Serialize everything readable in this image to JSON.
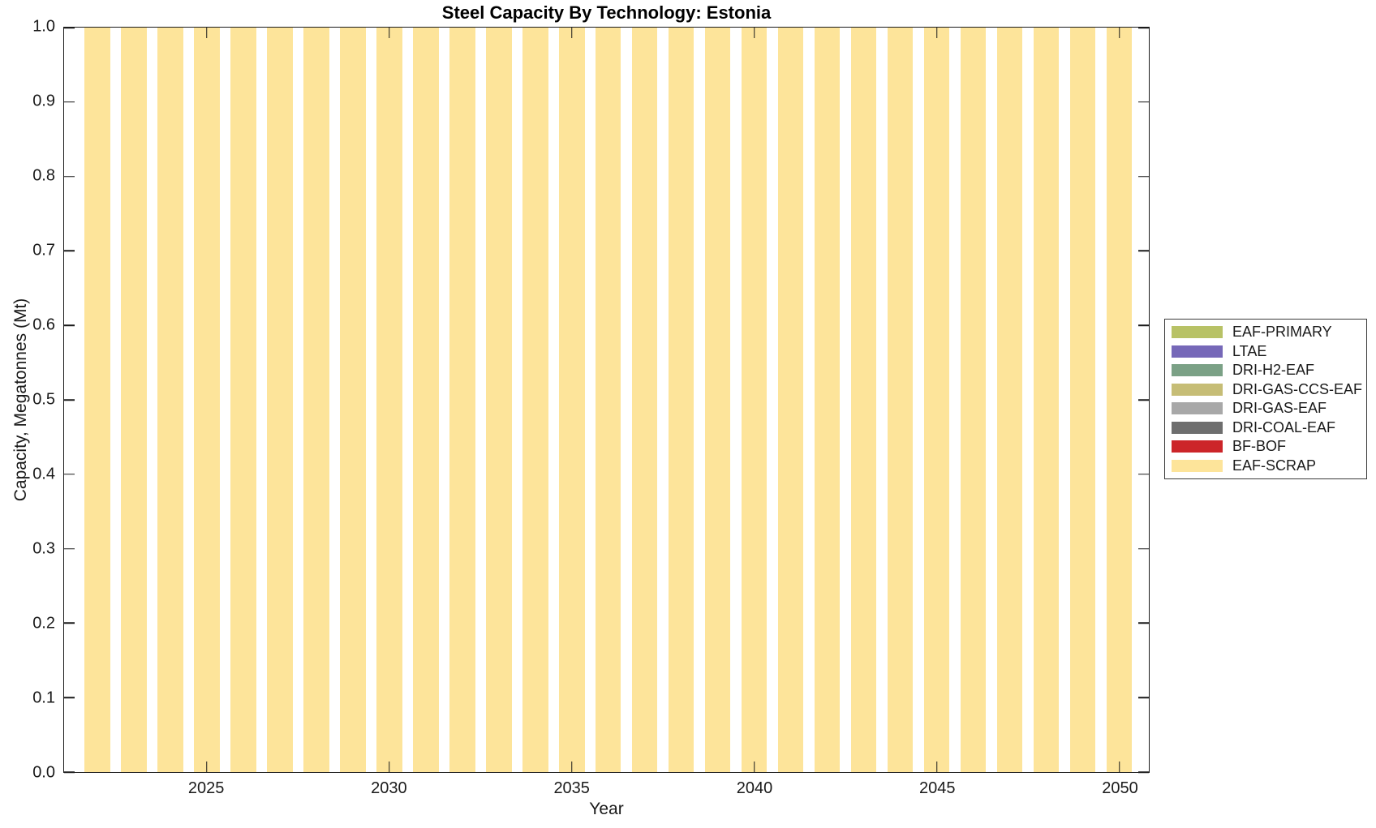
{
  "figure": {
    "title": "Steel Capacity By Technology: Estonia",
    "xlabel": "Year",
    "ylabel": "Capacity, Megatonnes (Mt)"
  },
  "legend": {
    "entries": [
      {
        "label": "EAF-PRIMARY",
        "color": "#b8c266"
      },
      {
        "label": "LTAE",
        "color": "#7668b8"
      },
      {
        "label": "DRI-H2-EAF",
        "color": "#7ba186"
      },
      {
        "label": "DRI-GAS-CCS-EAF",
        "color": "#c6bd76"
      },
      {
        "label": "DRI-GAS-EAF",
        "color": "#a8a8a8"
      },
      {
        "label": "DRI-COAL-EAF",
        "color": "#6e6e6e"
      },
      {
        "label": "BF-BOF",
        "color": "#cc2529"
      },
      {
        "label": "EAF-SCRAP",
        "color": "#fde49a"
      }
    ]
  },
  "chart_data": {
    "type": "bar",
    "stacked": true,
    "title": "Steel Capacity By Technology: Estonia",
    "xlabel": "Year",
    "ylabel": "Capacity, Megatonnes (Mt)",
    "x": [
      2022,
      2023,
      2024,
      2025,
      2026,
      2027,
      2028,
      2029,
      2030,
      2031,
      2032,
      2033,
      2034,
      2035,
      2036,
      2037,
      2038,
      2039,
      2040,
      2041,
      2042,
      2043,
      2044,
      2045,
      2046,
      2047,
      2048,
      2049,
      2050
    ],
    "series": [
      {
        "name": "EAF-PRIMARY",
        "color": "#b8c266",
        "values": [
          0,
          0,
          0,
          0,
          0,
          0,
          0,
          0,
          0,
          0,
          0,
          0,
          0,
          0,
          0,
          0,
          0,
          0,
          0,
          0,
          0,
          0,
          0,
          0,
          0,
          0,
          0,
          0,
          0
        ]
      },
      {
        "name": "LTAE",
        "color": "#7668b8",
        "values": [
          0,
          0,
          0,
          0,
          0,
          0,
          0,
          0,
          0,
          0,
          0,
          0,
          0,
          0,
          0,
          0,
          0,
          0,
          0,
          0,
          0,
          0,
          0,
          0,
          0,
          0,
          0,
          0,
          0
        ]
      },
      {
        "name": "DRI-H2-EAF",
        "color": "#7ba186",
        "values": [
          0,
          0,
          0,
          0,
          0,
          0,
          0,
          0,
          0,
          0,
          0,
          0,
          0,
          0,
          0,
          0,
          0,
          0,
          0,
          0,
          0,
          0,
          0,
          0,
          0,
          0,
          0,
          0,
          0
        ]
      },
      {
        "name": "DRI-GAS-CCS-EAF",
        "color": "#c6bd76",
        "values": [
          0,
          0,
          0,
          0,
          0,
          0,
          0,
          0,
          0,
          0,
          0,
          0,
          0,
          0,
          0,
          0,
          0,
          0,
          0,
          0,
          0,
          0,
          0,
          0,
          0,
          0,
          0,
          0,
          0
        ]
      },
      {
        "name": "DRI-GAS-EAF",
        "color": "#a8a8a8",
        "values": [
          0,
          0,
          0,
          0,
          0,
          0,
          0,
          0,
          0,
          0,
          0,
          0,
          0,
          0,
          0,
          0,
          0,
          0,
          0,
          0,
          0,
          0,
          0,
          0,
          0,
          0,
          0,
          0,
          0
        ]
      },
      {
        "name": "DRI-COAL-EAF",
        "color": "#6e6e6e",
        "values": [
          0,
          0,
          0,
          0,
          0,
          0,
          0,
          0,
          0,
          0,
          0,
          0,
          0,
          0,
          0,
          0,
          0,
          0,
          0,
          0,
          0,
          0,
          0,
          0,
          0,
          0,
          0,
          0,
          0
        ]
      },
      {
        "name": "BF-BOF",
        "color": "#cc2529",
        "values": [
          0,
          0,
          0,
          0,
          0,
          0,
          0,
          0,
          0,
          0,
          0,
          0,
          0,
          0,
          0,
          0,
          0,
          0,
          0,
          0,
          0,
          0,
          0,
          0,
          0,
          0,
          0,
          0,
          0
        ]
      },
      {
        "name": "EAF-SCRAP",
        "color": "#fde49a",
        "values": [
          1,
          1,
          1,
          1,
          1,
          1,
          1,
          1,
          1,
          1,
          1,
          1,
          1,
          1,
          1,
          1,
          1,
          1,
          1,
          1,
          1,
          1,
          1,
          1,
          1,
          1,
          1,
          1,
          1
        ]
      }
    ],
    "xticks": [
      2025,
      2030,
      2035,
      2040,
      2045,
      2050
    ],
    "xtick_labels": [
      "2025",
      "2030",
      "2035",
      "2040",
      "2045",
      "2050"
    ],
    "yticks": [
      0,
      0.1,
      0.2,
      0.3,
      0.4,
      0.5,
      0.6,
      0.7,
      0.8,
      0.9,
      1.0
    ],
    "ytick_labels": [
      "0.0",
      "0.1",
      "0.2",
      "0.3",
      "0.4",
      "0.5",
      "0.6",
      "0.7",
      "0.8",
      "0.9",
      "1.0"
    ],
    "xlim": [
      2021.09,
      2050.81
    ],
    "ylim": [
      0,
      1
    ],
    "bar_width": 0.7,
    "grid": false,
    "legend_position": "right-outside"
  }
}
